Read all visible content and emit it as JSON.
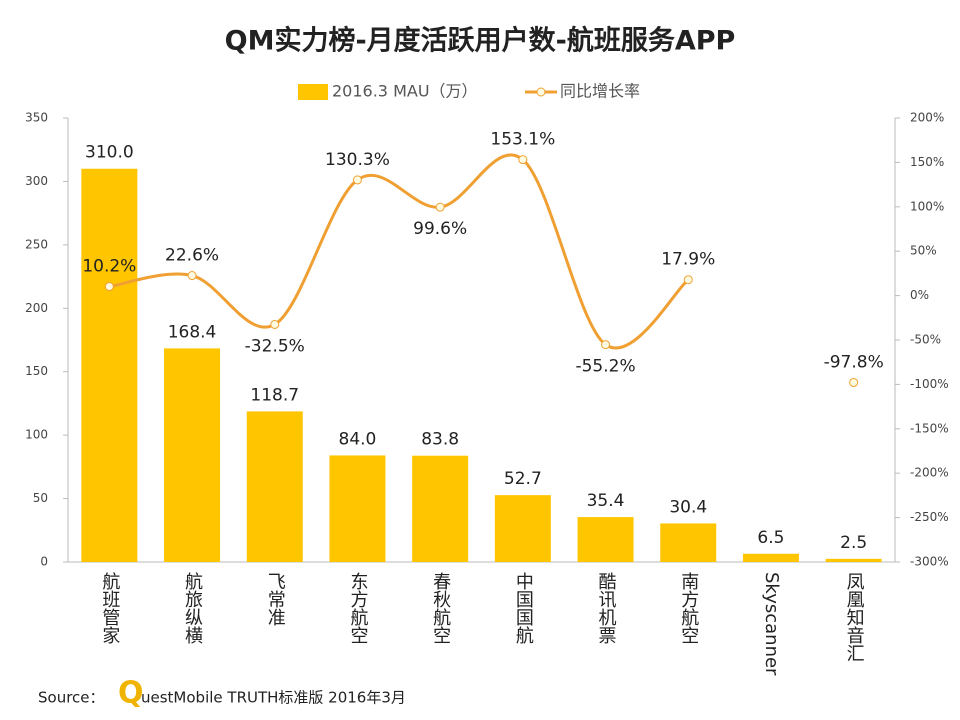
{
  "chart_data": {
    "type": "bar-line",
    "title": "QM实力榜-月度活跃用户数-航班服务APP",
    "categories": [
      "航班管家",
      "航旅纵横",
      "飞常准",
      "东方航空",
      "春秋航空",
      "中国国航",
      "酷讯机票",
      "南方航空",
      "Skyscanner",
      "凤凰知音汇"
    ],
    "series": [
      {
        "name": "2016.3 MAU（万）",
        "type": "bar",
        "color": "#ffc600",
        "values": [
          310,
          168.4,
          118.7,
          84,
          83.8,
          52.7,
          35.4,
          30.4,
          6.5,
          2.5
        ],
        "value_labels": [
          "310.0",
          "168.4",
          "118.7",
          "84.0",
          "83.8",
          "52.7",
          "35.4",
          "30.4",
          "6.5",
          "2.5"
        ]
      },
      {
        "name": "同比增长率",
        "type": "line",
        "axis": "y2",
        "color": "#f0a032",
        "values": [
          10.2,
          22.6,
          -32.5,
          130.3,
          99.6,
          153.1,
          -55.2,
          17.9,
          null,
          -97.8
        ],
        "value_labels": [
          "10.2%",
          "22.6%",
          "-32.5%",
          "130.3%",
          "99.6%",
          "153.1%",
          "-55.2%",
          "17.9%",
          null,
          "-97.8%"
        ]
      }
    ],
    "ylim": [
      0,
      350
    ],
    "yticks": [
      0,
      50,
      100,
      150,
      200,
      250,
      300,
      350
    ],
    "y2lim": [
      -300,
      200
    ],
    "y2ticks": [
      {
        "value": -300,
        "label": "-300%"
      },
      {
        "value": -250,
        "label": "-250%"
      },
      {
        "value": -200,
        "label": "-200%"
      },
      {
        "value": -150,
        "label": "-150%"
      },
      {
        "value": -100,
        "label": "-100%"
      },
      {
        "value": -50,
        "label": "-50%"
      },
      {
        "value": 0,
        "label": "0%"
      },
      {
        "value": 50,
        "label": "50%"
      },
      {
        "value": 100,
        "label": "100%"
      },
      {
        "value": 150,
        "label": "150%"
      },
      {
        "value": 200,
        "label": "200%"
      }
    ],
    "legend": "top",
    "source": "Source：",
    "source_brand": "Q",
    "source_text": "uestMobile TRUTH标准版 2016年3月"
  }
}
